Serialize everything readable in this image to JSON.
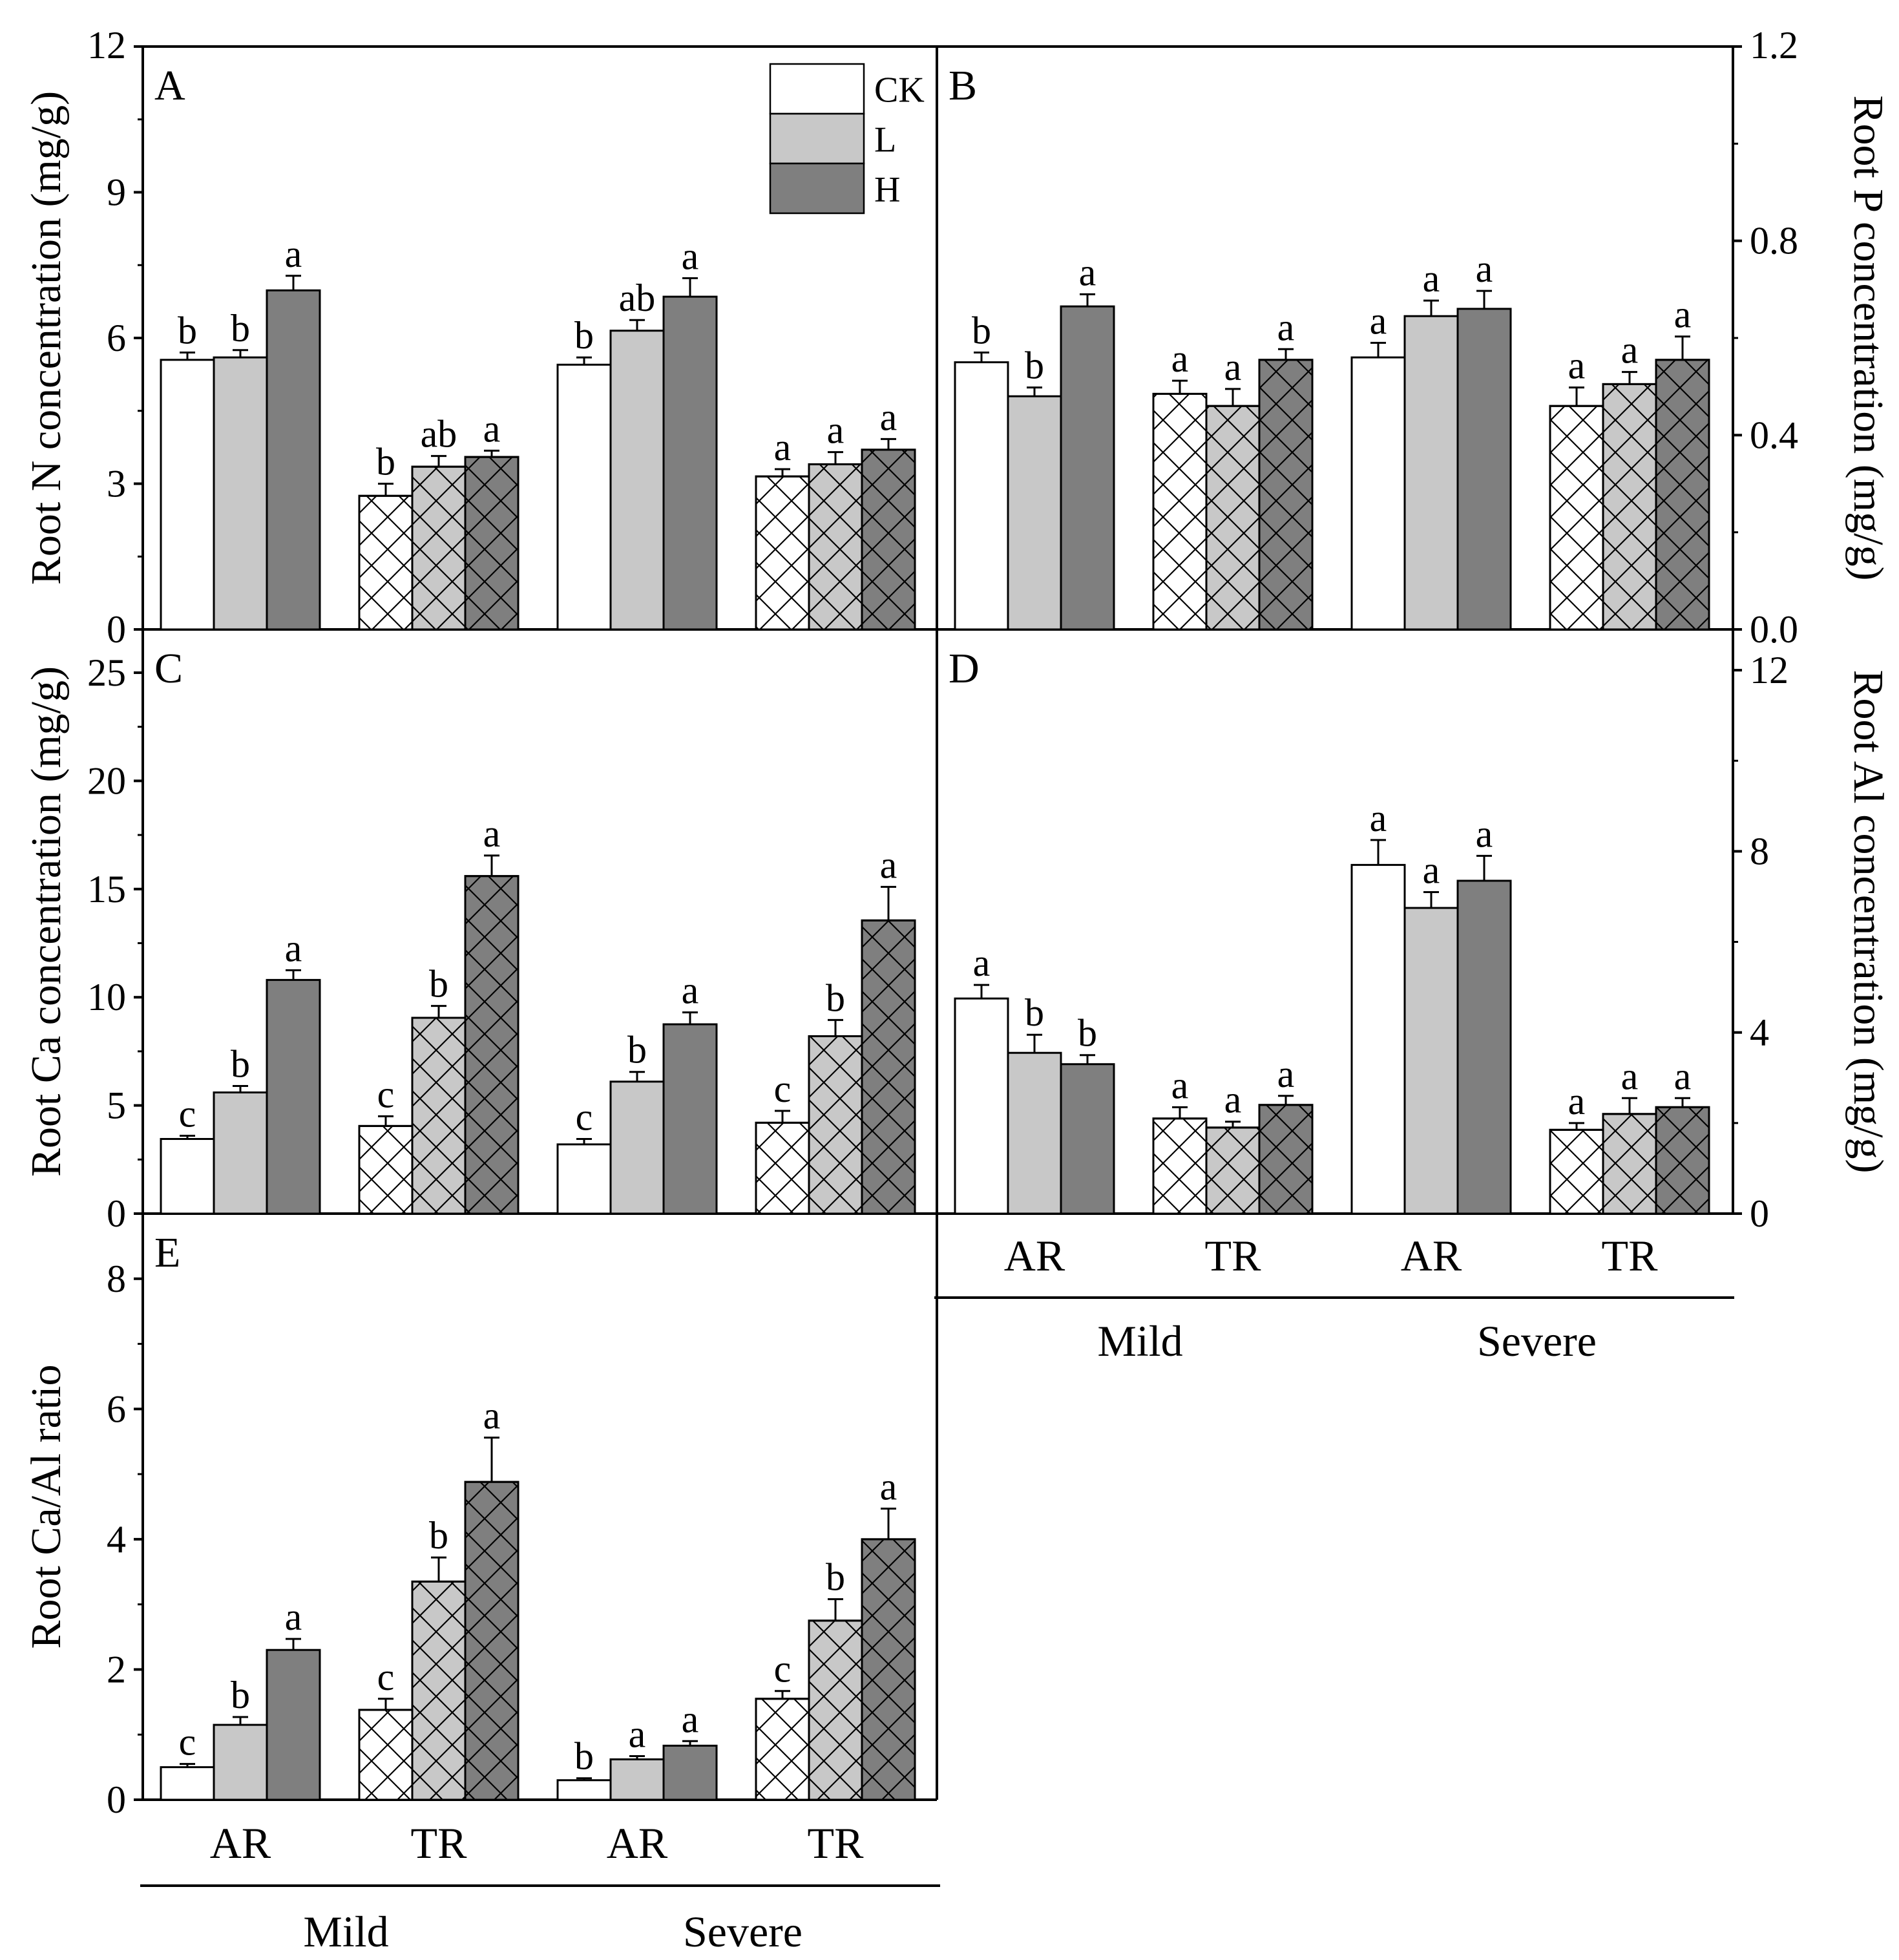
{
  "figure_label": "Root nutrient concentrations",
  "legend": [
    {
      "key": "CK",
      "label": "CK"
    },
    {
      "key": "L",
      "label": "L"
    },
    {
      "key": "H",
      "label": "H"
    }
  ],
  "colors": {
    "CK": "#ffffff",
    "L": "#c8c8c8",
    "H": "#7f7f7f",
    "hatch": "#000000"
  },
  "x_axis": {
    "categories": [
      "AR",
      "TR",
      "AR",
      "TR"
    ],
    "groups": [
      "Mild",
      "Severe"
    ]
  },
  "chart_data": [
    {
      "panel": "A",
      "type": "bar",
      "title": "",
      "ylabel": "Root N concentration (mg/g)",
      "axis_side": "left",
      "ylim": [
        0,
        12
      ],
      "yticks": [
        0,
        3,
        6,
        9,
        12
      ],
      "ytick_labels": [
        "0",
        "3",
        "6",
        "9",
        "12"
      ],
      "categories": [
        "AR",
        "TR",
        "AR",
        "TR"
      ],
      "groups": [
        "Mild",
        "Mild",
        "Severe",
        "Severe"
      ],
      "series": [
        {
          "name": "CK",
          "values": [
            5.55,
            2.75,
            5.45,
            3.15
          ],
          "errors": [
            0.15,
            0.25,
            0.15,
            0.15
          ],
          "letters": [
            "b",
            "b",
            "b",
            "a"
          ]
        },
        {
          "name": "L",
          "values": [
            5.6,
            3.35,
            6.15,
            3.4
          ],
          "errors": [
            0.15,
            0.22,
            0.22,
            0.25
          ],
          "letters": [
            "b",
            "ab",
            "ab",
            "a"
          ]
        },
        {
          "name": "H",
          "values": [
            6.98,
            3.55,
            6.85,
            3.7
          ],
          "errors": [
            0.3,
            0.13,
            0.38,
            0.22
          ],
          "letters": [
            "a",
            "a",
            "a",
            "a"
          ]
        }
      ]
    },
    {
      "panel": "B",
      "type": "bar",
      "title": "",
      "ylabel": "Root P concentration (mg/g)",
      "axis_side": "right",
      "ylim": [
        0,
        1.2
      ],
      "yticks": [
        0,
        0.4,
        0.8,
        1.2
      ],
      "ytick_labels": [
        "0.0",
        "0.4",
        "0.8",
        "1.2"
      ],
      "categories": [
        "AR",
        "TR",
        "AR",
        "TR"
      ],
      "groups": [
        "Mild",
        "Mild",
        "Severe",
        "Severe"
      ],
      "series": [
        {
          "name": "CK",
          "values": [
            0.55,
            0.485,
            0.56,
            0.46
          ],
          "errors": [
            0.02,
            0.027,
            0.03,
            0.038
          ],
          "letters": [
            "b",
            "a",
            "a",
            "a"
          ]
        },
        {
          "name": "L",
          "values": [
            0.48,
            0.46,
            0.645,
            0.505
          ],
          "errors": [
            0.018,
            0.035,
            0.032,
            0.025
          ],
          "letters": [
            "b",
            "a",
            "a",
            "a"
          ]
        },
        {
          "name": "H",
          "values": [
            0.665,
            0.555,
            0.66,
            0.555
          ],
          "errors": [
            0.025,
            0.022,
            0.037,
            0.048
          ],
          "letters": [
            "a",
            "a",
            "a",
            "a"
          ]
        }
      ]
    },
    {
      "panel": "C",
      "type": "bar",
      "title": "",
      "ylabel": "Root Ca concentration (mg/g)",
      "axis_side": "left",
      "ylim": [
        0,
        27
      ],
      "yticks": [
        0,
        5,
        10,
        15,
        20,
        25
      ],
      "ytick_labels": [
        "0",
        "5",
        "10",
        "15",
        "20",
        "25"
      ],
      "categories": [
        "AR",
        "TR",
        "AR",
        "TR"
      ],
      "groups": [
        "Mild",
        "Mild",
        "Severe",
        "Severe"
      ],
      "series": [
        {
          "name": "CK",
          "values": [
            3.45,
            4.05,
            3.2,
            4.2
          ],
          "errors": [
            0.15,
            0.45,
            0.25,
            0.55
          ],
          "letters": [
            "c",
            "c",
            "c",
            "c"
          ]
        },
        {
          "name": "L",
          "values": [
            5.6,
            9.05,
            6.1,
            8.2
          ],
          "errors": [
            0.3,
            0.55,
            0.45,
            0.75
          ],
          "letters": [
            "b",
            "b",
            "b",
            "b"
          ]
        },
        {
          "name": "H",
          "values": [
            10.8,
            15.6,
            8.75,
            13.55
          ],
          "errors": [
            0.45,
            0.95,
            0.55,
            1.55
          ],
          "letters": [
            "a",
            "a",
            "a",
            "a"
          ]
        }
      ]
    },
    {
      "panel": "D",
      "type": "bar",
      "title": "",
      "ylabel": "Root Al concentration (mg/g)",
      "axis_side": "right",
      "ylim": [
        0,
        12.9
      ],
      "yticks": [
        0,
        4,
        8,
        12
      ],
      "ytick_labels": [
        "0",
        "4",
        "8",
        "12"
      ],
      "categories": [
        "AR",
        "TR",
        "AR",
        "TR"
      ],
      "groups": [
        "Mild",
        "Mild",
        "Severe",
        "Severe"
      ],
      "series": [
        {
          "name": "CK",
          "values": [
            4.75,
            2.1,
            7.7,
            1.85
          ],
          "errors": [
            0.3,
            0.25,
            0.55,
            0.15
          ],
          "letters": [
            "a",
            "a",
            "a",
            "a"
          ]
        },
        {
          "name": "L",
          "values": [
            3.55,
            1.9,
            6.75,
            2.2
          ],
          "errors": [
            0.4,
            0.13,
            0.35,
            0.35
          ],
          "letters": [
            "b",
            "a",
            "a",
            "a"
          ]
        },
        {
          "name": "H",
          "values": [
            3.3,
            2.4,
            7.35,
            2.35
          ],
          "errors": [
            0.2,
            0.2,
            0.55,
            0.2
          ],
          "letters": [
            "b",
            "a",
            "a",
            "a"
          ]
        }
      ]
    },
    {
      "panel": "E",
      "type": "bar",
      "title": "",
      "ylabel": "Root Ca/Al ratio",
      "axis_side": "left",
      "ylim": [
        0,
        9
      ],
      "yticks": [
        0,
        2,
        4,
        6,
        8
      ],
      "ytick_labels": [
        "0",
        "2",
        "4",
        "6",
        "8"
      ],
      "categories": [
        "AR",
        "TR",
        "AR",
        "TR"
      ],
      "groups": [
        "Mild",
        "Mild",
        "Severe",
        "Severe"
      ],
      "series": [
        {
          "name": "CK",
          "values": [
            0.5,
            1.38,
            0.3,
            1.55
          ],
          "errors": [
            0.05,
            0.17,
            0.03,
            0.12
          ],
          "letters": [
            "c",
            "c",
            "b",
            "c"
          ]
        },
        {
          "name": "L",
          "values": [
            1.15,
            3.35,
            0.62,
            2.75
          ],
          "errors": [
            0.12,
            0.37,
            0.05,
            0.33
          ],
          "letters": [
            "b",
            "b",
            "a",
            "b"
          ]
        },
        {
          "name": "H",
          "values": [
            2.3,
            4.88,
            0.83,
            4.0
          ],
          "errors": [
            0.17,
            0.68,
            0.07,
            0.47
          ],
          "letters": [
            "a",
            "a",
            "a",
            "a"
          ]
        }
      ]
    }
  ]
}
